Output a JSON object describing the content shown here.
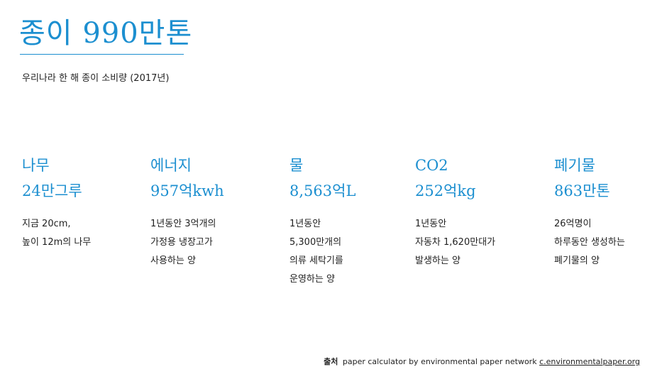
{
  "title": "종이 990만톤",
  "subtitle": "우리나라 한 해 종이 소비량 (2017년)",
  "stats": [
    {
      "label": "나무",
      "value": "24만그루",
      "desc": [
        "지금 20cm,",
        "높이 12m의 나무"
      ]
    },
    {
      "label": "에너지",
      "value": "957억kwh",
      "desc": [
        "1년동안 3억개의",
        "가정용 냉장고가",
        "사용하는 양"
      ]
    },
    {
      "label": "물",
      "value": "8,563억L",
      "desc": [
        "1년동안",
        "5,300만개의",
        "의류 세탁기를",
        "운영하는 양"
      ]
    },
    {
      "label": "CO2",
      "value": "252억kg",
      "desc": [
        "1년동안",
        "자동차 1,620만대가",
        "발생하는 양"
      ]
    },
    {
      "label": "폐기물",
      "value": "863만톤",
      "desc": [
        "26억명이",
        "하루동안 생성하는",
        "폐기물의 양"
      ]
    }
  ],
  "source": {
    "label": "출처",
    "text": "paper calculator by environmental paper network",
    "link": "c.environmentalpaper.org"
  },
  "colors": {
    "accent": "#1c8fd0",
    "text": "#222222"
  }
}
